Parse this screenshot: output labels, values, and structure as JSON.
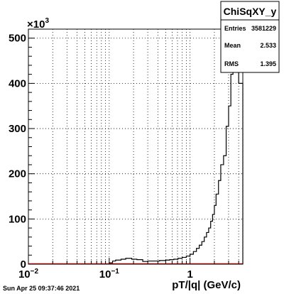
{
  "chart_data": {
    "type": "bar",
    "title": "",
    "xlabel": "pT/|q| (GeV/c)",
    "ylabel": "",
    "y_multiplier": "×10³",
    "xscale": "log",
    "xlim": [
      0.01,
      4.5
    ],
    "ylim": [
      0,
      520
    ],
    "grid": true,
    "x_ticks": [
      {
        "value": 0.01,
        "base": "10",
        "exp": "−2"
      },
      {
        "value": 0.1,
        "base": "10",
        "exp": "−1"
      },
      {
        "value": 1,
        "base": "1",
        "exp": ""
      }
    ],
    "y_ticks": [
      0,
      100,
      200,
      300,
      400,
      500
    ],
    "y_tick_labels": [
      "0",
      "100",
      "200",
      "300",
      "400",
      "500"
    ],
    "bins": [
      [
        0.1,
        0.11,
        3
      ],
      [
        0.11,
        0.12,
        7
      ],
      [
        0.12,
        0.14,
        9
      ],
      [
        0.14,
        0.16,
        11
      ],
      [
        0.16,
        0.19,
        13
      ],
      [
        0.19,
        0.22,
        11
      ],
      [
        0.22,
        0.26,
        10
      ],
      [
        0.26,
        0.3,
        6
      ],
      [
        0.3,
        0.36,
        7
      ],
      [
        0.36,
        0.42,
        7
      ],
      [
        0.42,
        0.5,
        8
      ],
      [
        0.5,
        0.56,
        9
      ],
      [
        0.56,
        0.63,
        10
      ],
      [
        0.63,
        0.71,
        11
      ],
      [
        0.71,
        0.8,
        13
      ],
      [
        0.8,
        0.9,
        15
      ],
      [
        0.9,
        1.0,
        18
      ],
      [
        1.0,
        1.1,
        22
      ],
      [
        1.1,
        1.2,
        28
      ],
      [
        1.2,
        1.3,
        35
      ],
      [
        1.3,
        1.4,
        42
      ],
      [
        1.4,
        1.5,
        50
      ],
      [
        1.5,
        1.6,
        60
      ],
      [
        1.6,
        1.7,
        70
      ],
      [
        1.7,
        1.8,
        80
      ],
      [
        1.8,
        1.9,
        95
      ],
      [
        1.9,
        2.0,
        110
      ],
      [
        2.0,
        2.1,
        130
      ],
      [
        2.1,
        2.25,
        155
      ],
      [
        2.25,
        2.4,
        185
      ],
      [
        2.4,
        2.6,
        220
      ],
      [
        2.6,
        2.8,
        240
      ],
      [
        2.8,
        3.0,
        305
      ],
      [
        3.0,
        3.2,
        350
      ],
      [
        3.2,
        3.4,
        420
      ],
      [
        3.4,
        3.6,
        490
      ],
      [
        3.6,
        4.0,
        520
      ],
      [
        4.0,
        4.5,
        400
      ]
    ],
    "stats": {
      "title": "ChiSqXY_y",
      "entries_label": "Entries",
      "entries_value": "3581229",
      "mean_label": "Mean",
      "mean_value": "2.533",
      "rms_label": "RMS",
      "rms_value": "1.395"
    },
    "line_color": "#000000",
    "baseline_color": "#ff0000"
  },
  "footer": {
    "timestamp": "Sun Apr 25 09:37:46 2021"
  }
}
